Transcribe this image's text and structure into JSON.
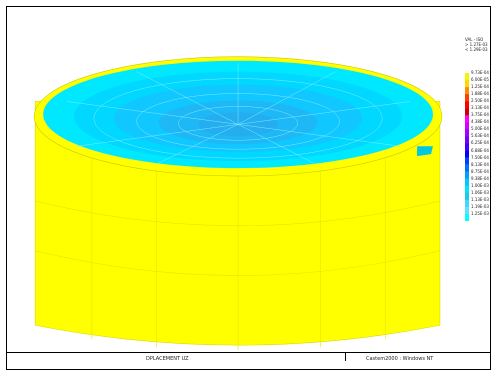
{
  "header": {
    "lines": [
      "VAL - ISO",
      "> 1.27E-03",
      "< 1.29E-03"
    ]
  },
  "legend": {
    "colors": [
      "#f5f500",
      "#ffd700",
      "#ff8c00",
      "#ff3b00",
      "#ff0000",
      "#d10000",
      "#ff00ff",
      "#d400ff",
      "#a400ff",
      "#7000ff",
      "#4000ff",
      "#0000ff",
      "#0040ff",
      "#0070ff",
      "#00a0ff",
      "#00c8ff",
      "#00e0ff",
      "#20c8e8",
      "#40d8ff",
      "#60e0ff",
      "#00ffff"
    ],
    "labels": [
      "9.73E-04",
      "6.00E-05",
      "1.25E-04",
      "1.88E-04",
      "2.50E-04",
      "3.13E-04",
      "3.75E-04",
      "4.38E-04",
      "5.00E-04",
      "5.63E-04",
      "6.25E-04",
      "6.88E-04",
      "7.50E-04",
      "8.13E-04",
      "8.75E-04",
      "9.38E-04",
      "1.00E-03",
      "1.06E-03",
      "1.13E-03",
      "1.19E-03",
      "1.25E-03"
    ]
  },
  "status": {
    "left": "DPLACEMENT UZ",
    "right": "Castem2000 : Windows NT"
  }
}
